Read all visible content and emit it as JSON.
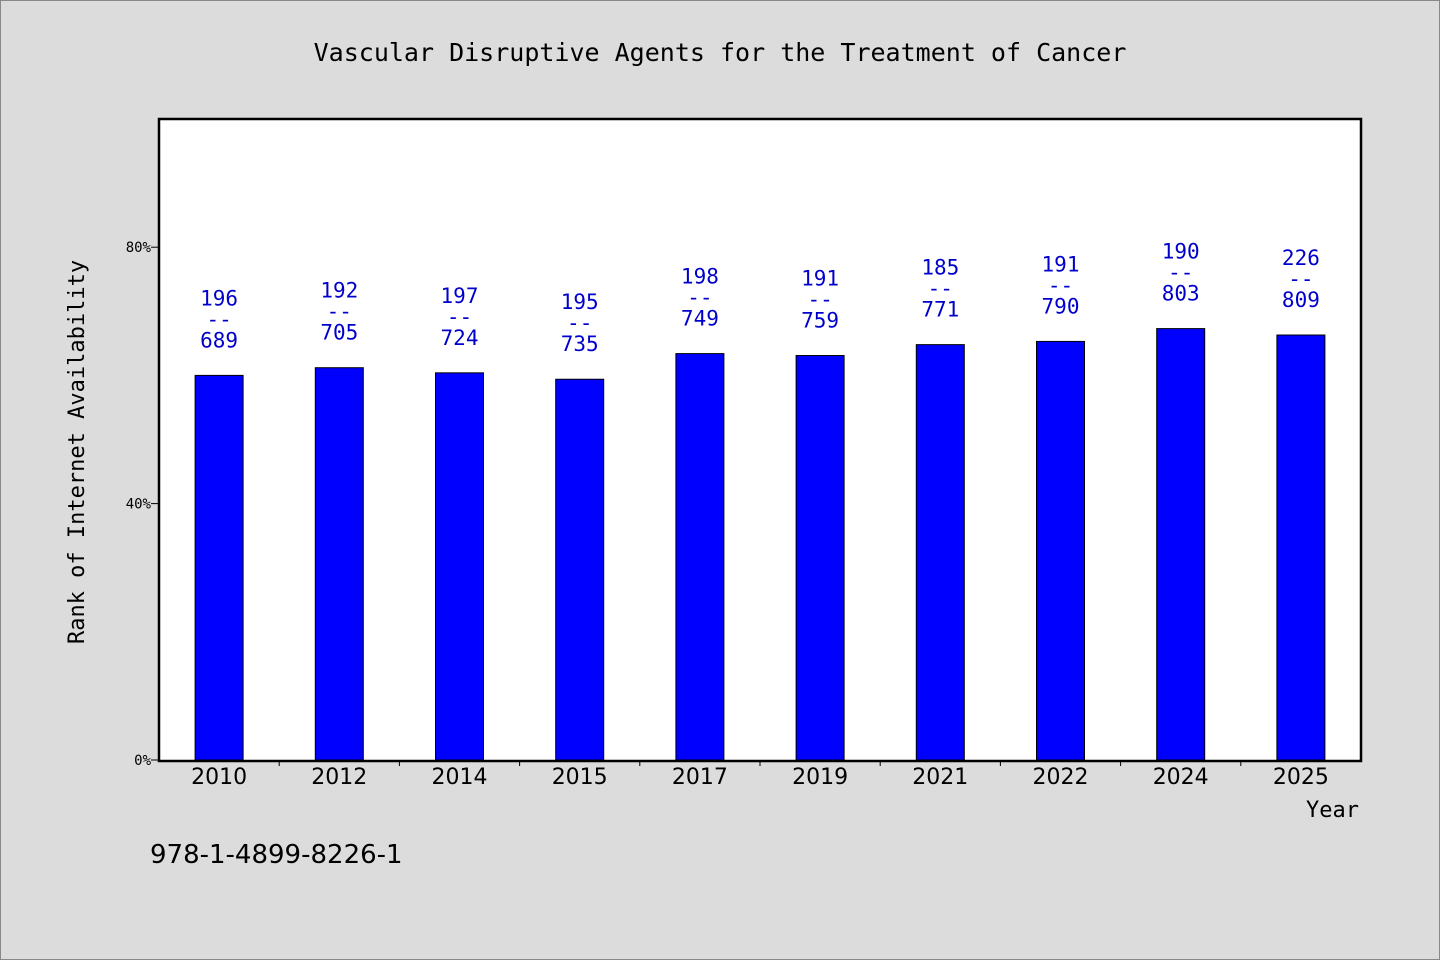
{
  "chart_data": {
    "type": "bar",
    "title": "Vascular Disruptive Agents for the Treatment of Cancer",
    "xlabel": "Year",
    "ylabel": "Rank of Internet Availability",
    "ylim": [
      0,
      100
    ],
    "yticks": [
      {
        "value": 0,
        "label": "0%"
      },
      {
        "value": 40,
        "label": "40%"
      },
      {
        "value": 80,
        "label": "80%"
      }
    ],
    "categories": [
      "2010",
      "2012",
      "2014",
      "2015",
      "2017",
      "2019",
      "2021",
      "2022",
      "2024",
      "2025"
    ],
    "values": [
      60,
      61.2,
      60.4,
      59.4,
      63.4,
      63.1,
      64.8,
      65.3,
      67.3,
      66.3
    ],
    "bar_labels": [
      {
        "top": "196",
        "sep": "--",
        "bottom": "689"
      },
      {
        "top": "192",
        "sep": "--",
        "bottom": "705"
      },
      {
        "top": "197",
        "sep": "--",
        "bottom": "724"
      },
      {
        "top": "195",
        "sep": "--",
        "bottom": "735"
      },
      {
        "top": "198",
        "sep": "--",
        "bottom": "749"
      },
      {
        "top": "191",
        "sep": "--",
        "bottom": "759"
      },
      {
        "top": "185",
        "sep": "--",
        "bottom": "771"
      },
      {
        "top": "191",
        "sep": "--",
        "bottom": "790"
      },
      {
        "top": "190",
        "sep": "--",
        "bottom": "803"
      },
      {
        "top": "226",
        "sep": "--",
        "bottom": "809"
      }
    ],
    "bar_color": "#0000ff",
    "label_color": "#0000cc",
    "grid": false,
    "legend": "none"
  },
  "footer": {
    "isbn": "978-1-4899-8226-1"
  }
}
